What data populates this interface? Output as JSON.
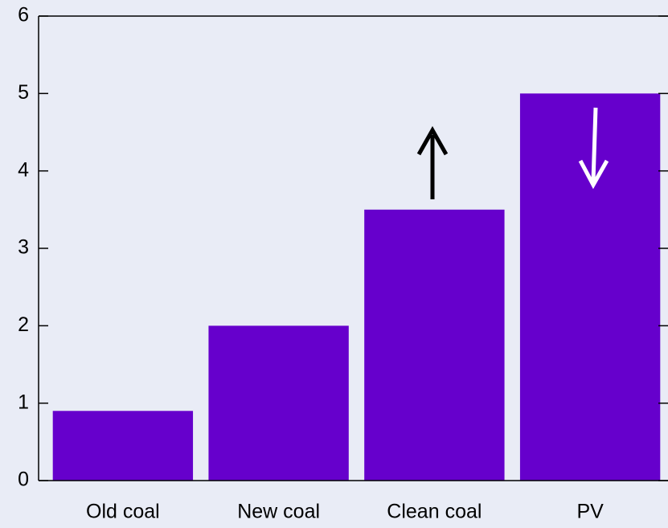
{
  "chart_data": {
    "type": "bar",
    "categories": [
      "Old coal",
      "New coal",
      "Clean coal",
      "PV"
    ],
    "values": [
      0.9,
      2,
      3.5,
      5
    ],
    "color": "#6600cc",
    "ylim": [
      0,
      6
    ],
    "yticks": [
      0,
      1,
      2,
      3,
      4,
      5,
      6
    ]
  }
}
